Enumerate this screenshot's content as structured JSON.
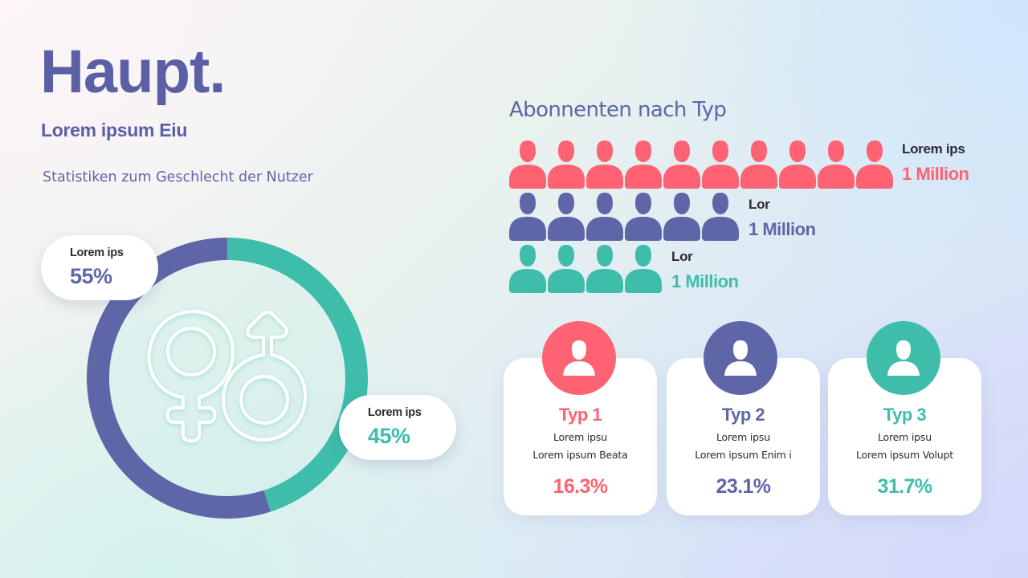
{
  "header": {
    "title": "Haupt.",
    "subtitle": "Lorem ipsum Eiu",
    "section_label": "Statistiken zum Geschlecht der Nutzer"
  },
  "colors": {
    "purple": "#5f66a8",
    "teal": "#3dbdaa",
    "coral": "#ff6272",
    "title": "#5a5fa6",
    "dark_text": "#2b2b33"
  },
  "gender": {
    "icon": "gender-symbols-icon",
    "segments": [
      {
        "label": "Lorem ips",
        "value": "55%",
        "percent": 55,
        "color": "#5f66a8",
        "icon": "female-symbol-icon"
      },
      {
        "label": "Lorem ips",
        "value": "45%",
        "percent": 45,
        "color": "#3dbdaa",
        "icon": "male-symbol-icon"
      }
    ]
  },
  "chart_data": {
    "type": "pie",
    "title": "Statistiken zum Geschlecht der Nutzer",
    "categories": [
      "Lorem ips",
      "Lorem ips"
    ],
    "values": [
      55,
      45
    ],
    "colors": [
      "#5f66a8",
      "#3dbdaa"
    ],
    "donut": true,
    "value_labels": [
      "55%",
      "45%"
    ]
  },
  "subscribers": {
    "title": "Abonnenten nach Typ",
    "rows": [
      {
        "label": "Lorem ips",
        "value": "1 Million",
        "icon_count": 10,
        "color": "#ff6272",
        "icon": "person-icon"
      },
      {
        "label": "Lor",
        "value": "1 Million",
        "icon_count": 6,
        "color": "#5f66a8",
        "icon": "person-icon"
      },
      {
        "label": "Lor",
        "value": "1 Million",
        "icon_count": 4,
        "color": "#3dbdaa",
        "icon": "person-icon"
      }
    ]
  },
  "types": [
    {
      "title": "Typ 1",
      "line1": "Lorem ipsu",
      "line2": "Lorem ipsum Beata",
      "value": "16.3%",
      "color": "#ff6272",
      "icon": "user-avatar-icon"
    },
    {
      "title": "Typ 2",
      "line1": "Lorem ipsu",
      "line2": "Lorem ipsum Enim i",
      "value": "23.1%",
      "color": "#5f66a8",
      "icon": "user-avatar-icon"
    },
    {
      "title": "Typ 3",
      "line1": "Lorem ipsu",
      "line2": "Lorem ipsum Volupt",
      "value": "31.7%",
      "color": "#3dbdaa",
      "icon": "user-avatar-icon"
    }
  ]
}
